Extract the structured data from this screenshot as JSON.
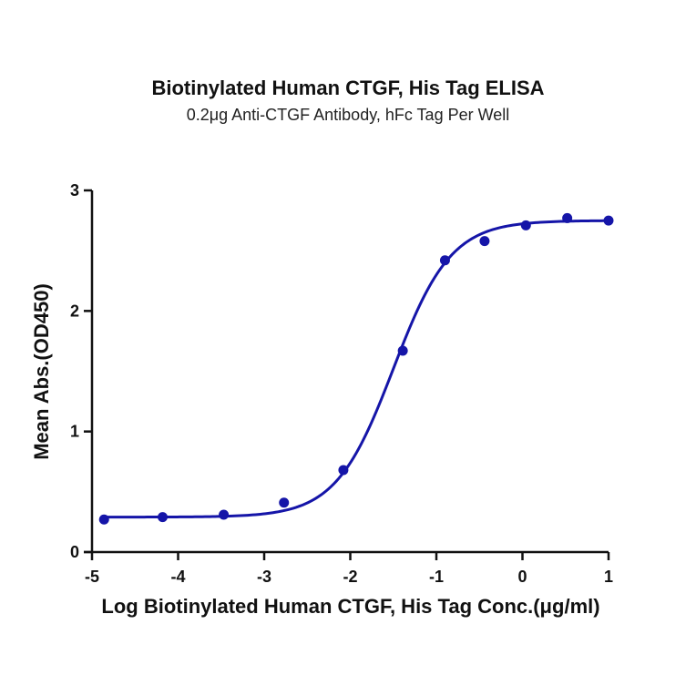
{
  "chart_data": {
    "type": "scatter",
    "title": "Biotinylated Human CTGF, His Tag ELISA",
    "subtitle": "0.2μg Anti-CTGF Antibody, hFc Tag Per Well",
    "xlabel": "Log Biotinylated Human CTGF, His Tag Conc.(μg/ml)",
    "ylabel": "Mean Abs.(OD450)",
    "xlim": [
      -5,
      1
    ],
    "ylim": [
      0,
      3
    ],
    "xticks": [
      -5,
      -4,
      -3,
      -2,
      -1,
      0,
      1
    ],
    "yticks": [
      0,
      1,
      2,
      3
    ],
    "grid": false,
    "legend": null,
    "series": [
      {
        "name": "Biotinylated Human CTGF, His Tag",
        "color": "#1515a8",
        "x": [
          -4.86,
          -4.18,
          -3.47,
          -2.77,
          -2.08,
          -1.39,
          -0.9,
          -0.44,
          0.04,
          0.52,
          1.0
        ],
        "y": [
          0.27,
          0.29,
          0.31,
          0.41,
          0.68,
          1.67,
          2.42,
          2.58,
          2.71,
          2.77,
          2.75
        ]
      }
    ],
    "fit": {
      "model": "4PL",
      "bottom": 0.29,
      "top": 2.75,
      "logEC50": -1.5,
      "hill": 1.3,
      "color": "#1515a8"
    }
  }
}
